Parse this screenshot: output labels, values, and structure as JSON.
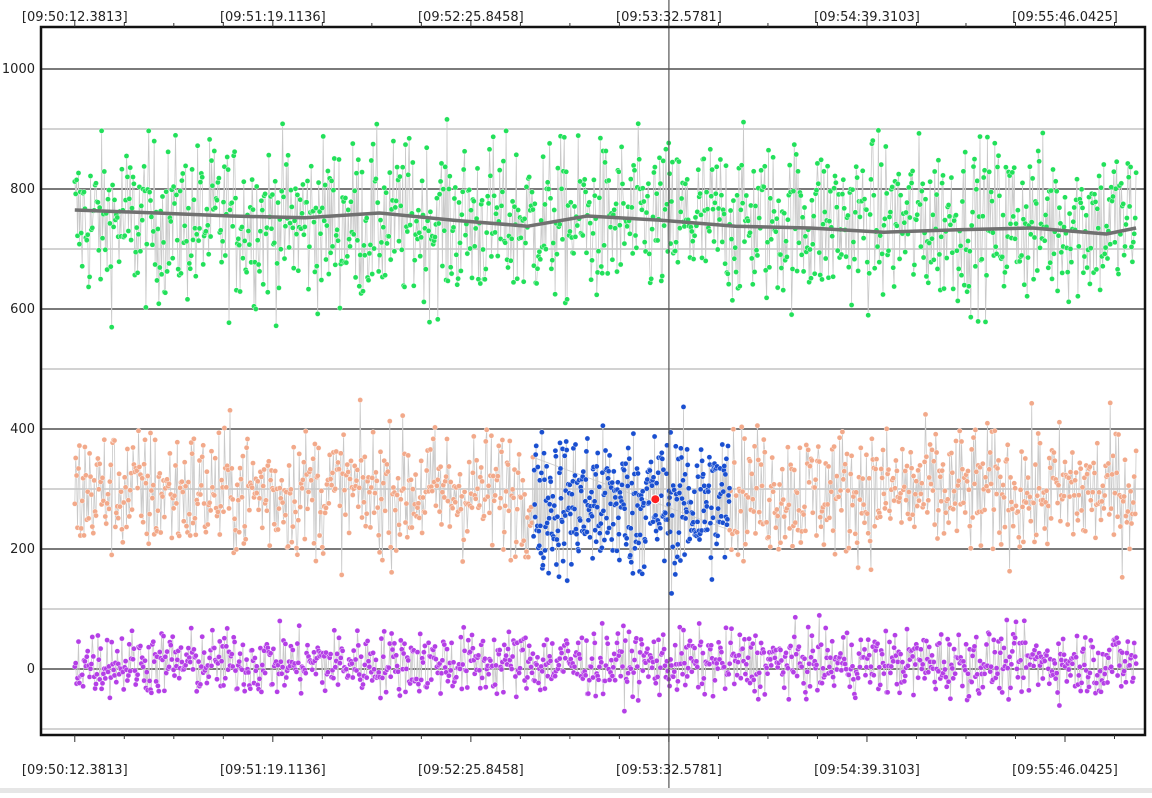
{
  "chart_data": {
    "type": "scatter",
    "x_ticks": [
      "[09:50:12.3813]",
      "[09:51:19.1136]",
      "[09:52:25.8458]",
      "[09:53:32.5781]",
      "[09:54:39.3103]",
      "[09:55:46.0425]"
    ],
    "y_ticks": [
      "-100",
      "0",
      "100",
      "200",
      "300",
      "400",
      "500",
      "600",
      "700",
      "800",
      "900",
      "1000"
    ],
    "y_tick_labels_shown": [
      "0",
      "200",
      "400",
      "600",
      "800",
      "1000"
    ],
    "ylim": [
      -110,
      1070
    ],
    "xlim": [
      "09:50:01.0",
      "09:56:13.0"
    ],
    "grid": true,
    "cursor_x": "09:53:32.5781",
    "cursor_marker": {
      "x": "09:53:28.0",
      "y": 283,
      "color": "#ff2020"
    },
    "series": [
      {
        "color": "#22e05a",
        "x_range": [
          "09:50:12.3813",
          "09:56:10.0"
        ],
        "mean": 745,
        "spread": 95,
        "min": 515,
        "max": 1035,
        "points": 1150
      },
      {
        "color": "#f2a98a",
        "x_range": [
          "09:50:12.3813",
          "09:56:10.0"
        ],
        "mean": 295,
        "spread": 75,
        "min": 105,
        "max": 515,
        "points": 1150,
        "gap": [
          "09:52:47.0",
          "09:53:53.0"
        ]
      },
      {
        "color": "#1a4fd0",
        "x_range": [
          "09:52:47.0",
          "09:53:53.0"
        ],
        "mean": 275,
        "spread": 85,
        "min": 110,
        "max": 495,
        "points": 380
      },
      {
        "color": "#b43fe6",
        "x_range": [
          "09:50:12.3813",
          "09:56:10.0"
        ],
        "mean": 10,
        "spread": 38,
        "min": -98,
        "max": 130,
        "points": 1150
      }
    ],
    "trend_line": {
      "color": "#707070",
      "x": [
        "09:50:12.4",
        "09:50:40",
        "09:51:05",
        "09:51:30",
        "09:51:55",
        "09:52:20",
        "09:52:45",
        "09:53:05",
        "09:53:30",
        "09:53:55",
        "09:54:20",
        "09:54:45",
        "09:55:10",
        "09:55:35",
        "09:56:00",
        "09:56:10"
      ],
      "y": [
        765,
        760,
        755,
        752,
        760,
        748,
        738,
        755,
        748,
        738,
        735,
        728,
        732,
        735,
        725,
        735
      ]
    }
  }
}
